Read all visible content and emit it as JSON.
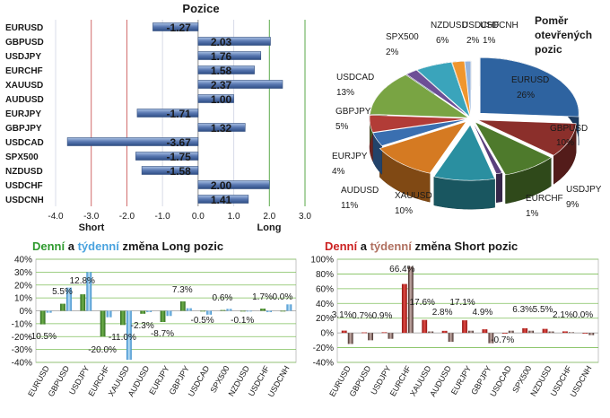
{
  "chart_data": [
    {
      "type": "bar",
      "orientation": "horizontal",
      "title": "Pozice",
      "categories": [
        "EURUSD",
        "GBPUSD",
        "USDJPY",
        "EURCHF",
        "XAUUSD",
        "AUDUSD",
        "EURJPY",
        "GBPJPY",
        "USDCAD",
        "SPX500",
        "NZDUSD",
        "USDCHF",
        "USDCNH"
      ],
      "values": [
        -1.27,
        2.03,
        1.76,
        1.58,
        2.37,
        1.0,
        -1.71,
        1.32,
        -3.67,
        -1.75,
        -1.58,
        2.0,
        1.41
      ],
      "value_labels": [
        "-1.27",
        "2.03",
        "1.76",
        "1.58",
        "2.37",
        "1.00",
        "-1.71",
        "1.32",
        "-3.67",
        "-1.75",
        "-1.58",
        "2.00",
        "1.41"
      ],
      "xlim": [
        -4.0,
        3.0
      ],
      "xticks": [
        "-4.0",
        "-3.0",
        "-2.0",
        "-1.0",
        "0.0",
        "1.0",
        "2.0",
        "3.0"
      ],
      "tick_values": [
        -4,
        -3,
        -2,
        -1,
        0,
        1,
        2,
        3
      ],
      "short_label": "Short",
      "long_label": "Long",
      "bar_color": "#4f6fa8"
    },
    {
      "type": "pie",
      "title_lines": [
        "Poměr",
        "otevřených",
        "pozic"
      ],
      "slices": [
        {
          "name": "EURUSD",
          "value": 26,
          "label": "26%",
          "color": "#2e63a0"
        },
        {
          "name": "GBPUSD",
          "value": 10,
          "label": "10%",
          "color": "#8b2f2b"
        },
        {
          "name": "USDJPY",
          "value": 9,
          "label": "9%",
          "color": "#4e7a2c"
        },
        {
          "name": "EURCHF",
          "value": 1,
          "label": "1%",
          "color": "#5a3f7c"
        },
        {
          "name": "XAUUSD",
          "value": 10,
          "label": "10%",
          "color": "#2a8fa0"
        },
        {
          "name": "AUDUSD",
          "value": 11,
          "label": "11%",
          "color": "#d57a22"
        },
        {
          "name": "EURJPY",
          "value": 4,
          "label": "4%",
          "color": "#3a6fb0"
        },
        {
          "name": "GBPJPY",
          "value": 5,
          "label": "5%",
          "color": "#b23c37"
        },
        {
          "name": "USDCAD",
          "value": 13,
          "label": "13%",
          "color": "#79a443"
        },
        {
          "name": "SPX500",
          "value": 2,
          "label": "2%",
          "color": "#6d4f96"
        },
        {
          "name": "NZDUSD",
          "value": 6,
          "label": "6%",
          "color": "#3aa4bb"
        },
        {
          "name": "USDCHF",
          "value": 2,
          "label": "2%",
          "color": "#f0962e"
        },
        {
          "name": "USDCNH",
          "value": 1,
          "label": "1%",
          "color": "#96b4dc"
        }
      ]
    },
    {
      "type": "bar",
      "title_parts": [
        {
          "text": "Denní",
          "color": "#2e9a2e"
        },
        {
          "text": " a ",
          "color": "#1a1a1a"
        },
        {
          "text": "týdenní",
          "color": "#4aa3df"
        },
        {
          "text": " změna Long pozic",
          "color": "#1a1a1a"
        }
      ],
      "categories": [
        "EURUSD",
        "GBPUSD",
        "USDJPY",
        "EURCHF",
        "XAUUSD",
        "AUDUSD",
        "EURJPY",
        "GBPJPY",
        "USDCAD",
        "SPX500",
        "NZDUSD",
        "USDCHF",
        "USDCNH"
      ],
      "series": [
        {
          "name": "Denní",
          "color": "#3f8f2c",
          "values": [
            -10.5,
            5.5,
            12.8,
            -20.0,
            -11.0,
            -2.3,
            -8.7,
            7.3,
            -0.5,
            0.6,
            -0.1,
            1.7,
            0.0
          ]
        },
        {
          "name": "Týdenní",
          "color": "#4aa3df",
          "values": [
            -1.5,
            18.0,
            30.0,
            -5.0,
            -38.0,
            -1.0,
            -4.0,
            2.0,
            -3.0,
            1.5,
            0.0,
            -1.0,
            5.0
          ]
        }
      ],
      "data_labels": [
        "-10.5%",
        "5.5%",
        "12.8%",
        "-20.0%",
        "-11.0%",
        "-2.3%",
        "-8.7%",
        "7.3%",
        "-0.5%",
        "0.6%",
        "-0.1%",
        "1.7%",
        "0.0%"
      ],
      "ylim": [
        -40,
        40
      ],
      "yticks": [
        "40%",
        "30%",
        "20%",
        "10%",
        "0%",
        "-10%",
        "-20%",
        "-30%",
        "-40%"
      ],
      "tick_values": [
        40,
        30,
        20,
        10,
        0,
        -10,
        -20,
        -30,
        -40
      ]
    },
    {
      "type": "bar",
      "title_parts": [
        {
          "text": "Denní",
          "color": "#cc2222"
        },
        {
          "text": " a ",
          "color": "#1a1a1a"
        },
        {
          "text": "týdenní",
          "color": "#b07060"
        },
        {
          "text": " změna Short pozic",
          "color": "#1a1a1a"
        }
      ],
      "categories": [
        "EURUSD",
        "GBPUSD",
        "USDJPY",
        "EURCHF",
        "XAUUSD",
        "AUDUSD",
        "EURJPY",
        "GBPJPY",
        "USDCAD",
        "SPX500",
        "NZDUSD",
        "USDCHF",
        "USDCNH"
      ],
      "series": [
        {
          "name": "Denní",
          "color": "#c0201e",
          "values": [
            3.1,
            0.7,
            0.9,
            66.4,
            17.6,
            2.8,
            17.1,
            4.9,
            -0.7,
            6.3,
            5.5,
            2.1,
            0.0
          ]
        },
        {
          "name": "Týdenní",
          "color": "#5b3a36",
          "values": [
            -15.0,
            -10.0,
            -8.0,
            90.0,
            2.0,
            -12.0,
            3.0,
            -14.0,
            3.0,
            3.0,
            2.0,
            1.0,
            -3.0
          ]
        }
      ],
      "data_labels": [
        "3.1%",
        "0.7%",
        "0.9%",
        "66.4%",
        "17.6%",
        "2.8%",
        "17.1%",
        "4.9%",
        "-0.7%",
        "6.3%",
        "5.5%",
        "2.1%",
        "0.0%"
      ],
      "ylim": [
        -40,
        100
      ],
      "yticks": [
        "100%",
        "80%",
        "60%",
        "40%",
        "20%",
        "0%",
        "-20%",
        "-40%"
      ],
      "tick_values": [
        100,
        80,
        60,
        40,
        20,
        0,
        -20,
        -40
      ]
    }
  ]
}
